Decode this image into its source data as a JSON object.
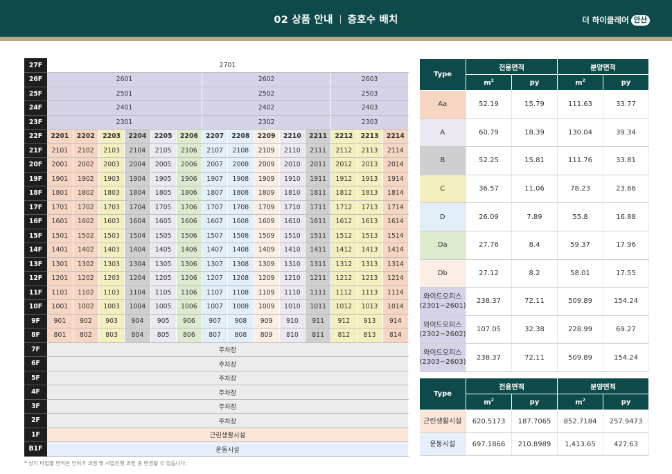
{
  "header": {
    "title_left": "02 상품 안내",
    "title_right": "층호수 배치",
    "brand": "더 하이클레어",
    "brand_tag": "안산"
  },
  "colors": {
    "Aa": "#f6d5c3",
    "A": "#ebe8f1",
    "B": "#cfcfcf",
    "C": "#f4efbe",
    "D": "#e2eff9",
    "Da": "#ddeacd",
    "Db": "#fbeee4",
    "wide": "#d6d3e8",
    "parking": "#ececec",
    "retail": "#fde6d8",
    "sports": "#e7f0fa"
  },
  "unit_columns": {
    "suffixes": [
      "01",
      "02",
      "03",
      "04",
      "05",
      "06",
      "07",
      "08",
      "09",
      "10",
      "11",
      "12",
      "13",
      "14"
    ],
    "types": [
      "Aa",
      "Aa",
      "C",
      "B",
      "A",
      "Da",
      "D",
      "D",
      "Db",
      "A",
      "B",
      "C",
      "C",
      "Aa"
    ]
  },
  "floors": {
    "top": [
      {
        "floor": "27F",
        "spans": [
          {
            "label": "2701",
            "cols": 14,
            "kind": "white"
          }
        ]
      },
      {
        "floor": "26F",
        "spans": [
          {
            "label": "2601",
            "cols": 6,
            "kind": "wide"
          },
          {
            "label": "2602",
            "cols": 5,
            "kind": "wide"
          },
          {
            "label": "2603",
            "cols": 3,
            "kind": "wide"
          }
        ]
      },
      {
        "floor": "25F",
        "spans": [
          {
            "label": "2501",
            "cols": 6,
            "kind": "wide"
          },
          {
            "label": "2502",
            "cols": 5,
            "kind": "wide"
          },
          {
            "label": "2503",
            "cols": 3,
            "kind": "wide"
          }
        ]
      },
      {
        "floor": "24F",
        "spans": [
          {
            "label": "2401",
            "cols": 6,
            "kind": "wide"
          },
          {
            "label": "2402",
            "cols": 5,
            "kind": "wide"
          },
          {
            "label": "2403",
            "cols": 3,
            "kind": "wide"
          }
        ]
      },
      {
        "floor": "23F",
        "spans": [
          {
            "label": "2301",
            "cols": 6,
            "kind": "wide"
          },
          {
            "label": "2302",
            "cols": 5,
            "kind": "wide"
          },
          {
            "label": "2303",
            "cols": 3,
            "kind": "wide"
          }
        ]
      }
    ],
    "unit_floors": [
      {
        "floor": "22F",
        "prefix": "22"
      },
      {
        "floor": "21F",
        "prefix": "21"
      },
      {
        "floor": "20F",
        "prefix": "20"
      },
      {
        "floor": "19F",
        "prefix": "19"
      },
      {
        "floor": "18F",
        "prefix": "18"
      },
      {
        "floor": "17F",
        "prefix": "17"
      },
      {
        "floor": "16F",
        "prefix": "16"
      },
      {
        "floor": "15F",
        "prefix": "15"
      },
      {
        "floor": "14F",
        "prefix": "14"
      },
      {
        "floor": "13F",
        "prefix": "13"
      },
      {
        "floor": "12F",
        "prefix": "12"
      },
      {
        "floor": "11F",
        "prefix": "11"
      },
      {
        "floor": "10F",
        "prefix": "10"
      },
      {
        "floor": "9F",
        "prefix": "9"
      },
      {
        "floor": "8F",
        "prefix": "8"
      }
    ],
    "bottom": [
      {
        "floor": "7F",
        "label": "주차장",
        "kind": "parking"
      },
      {
        "floor": "6F",
        "label": "주차장",
        "kind": "parking"
      },
      {
        "floor": "5F",
        "label": "주차장",
        "kind": "parking"
      },
      {
        "floor": "4F",
        "label": "주차장",
        "kind": "parking"
      },
      {
        "floor": "3F",
        "label": "주차장",
        "kind": "parking"
      },
      {
        "floor": "2F",
        "label": "주차장",
        "kind": "parking"
      },
      {
        "floor": "1F",
        "label": "근린생활시설",
        "kind": "retail"
      },
      {
        "floor": "B1F",
        "label": "운동시설",
        "kind": "sports"
      }
    ]
  },
  "type_table": {
    "head": {
      "type": "Type",
      "exclusive": "전용면적",
      "sale": "분양면적",
      "m2": "m",
      "m2_sup": "2",
      "py": "py"
    },
    "rows": [
      {
        "type": "Aa",
        "color": "Aa",
        "vals": [
          "52.19",
          "15.79",
          "111.63",
          "33.77"
        ]
      },
      {
        "type": "A",
        "color": "A",
        "vals": [
          "60.79",
          "18.39",
          "130.04",
          "39.34"
        ]
      },
      {
        "type": "B",
        "color": "B",
        "vals": [
          "52.25",
          "15.81",
          "111.76",
          "33.81"
        ]
      },
      {
        "type": "C",
        "color": "C",
        "vals": [
          "36.57",
          "11.06",
          "78.23",
          "23.66"
        ]
      },
      {
        "type": "D",
        "color": "D",
        "vals": [
          "26.09",
          "7.89",
          "55.8",
          "16.88"
        ]
      },
      {
        "type": "Da",
        "color": "Da",
        "vals": [
          "27.76",
          "8.4",
          "59.37",
          "17.96"
        ]
      },
      {
        "type": "Db",
        "color": "Db",
        "vals": [
          "27.12",
          "8.2",
          "58.01",
          "17.55"
        ]
      },
      {
        "type": "와이드오피스",
        "type2": "(2301~2601)",
        "color": "wide",
        "vals": [
          "238.37",
          "72.11",
          "509.89",
          "154.24"
        ]
      },
      {
        "type": "와이드오피스",
        "type2": "(2302~2602)",
        "color": "wide",
        "vals": [
          "107.05",
          "32.38",
          "228.99",
          "69.27"
        ]
      },
      {
        "type": "와이드오피스",
        "type2": "(2303~2603)",
        "color": "wide",
        "vals": [
          "238.37",
          "72.11",
          "509.89",
          "154.24"
        ]
      }
    ]
  },
  "facility_table": {
    "head": {
      "type": "Type",
      "exclusive": "전용면적",
      "sale": "분양면적",
      "m2": "m",
      "m2_sup": "2",
      "py": "py"
    },
    "rows": [
      {
        "type": "근린생활시설",
        "color": "retail",
        "vals": [
          "620.5173",
          "187.7065",
          "852.7184",
          "257.9473"
        ]
      },
      {
        "type": "운동시설",
        "color": "sports",
        "vals": [
          "697.1866",
          "210.8989",
          "1,413.65",
          "427.63"
        ]
      }
    ]
  },
  "footnote": "* 상기 타입별 면적은 인허가 과정 및 사업진행 과정 중 변경될 수 있습니다."
}
